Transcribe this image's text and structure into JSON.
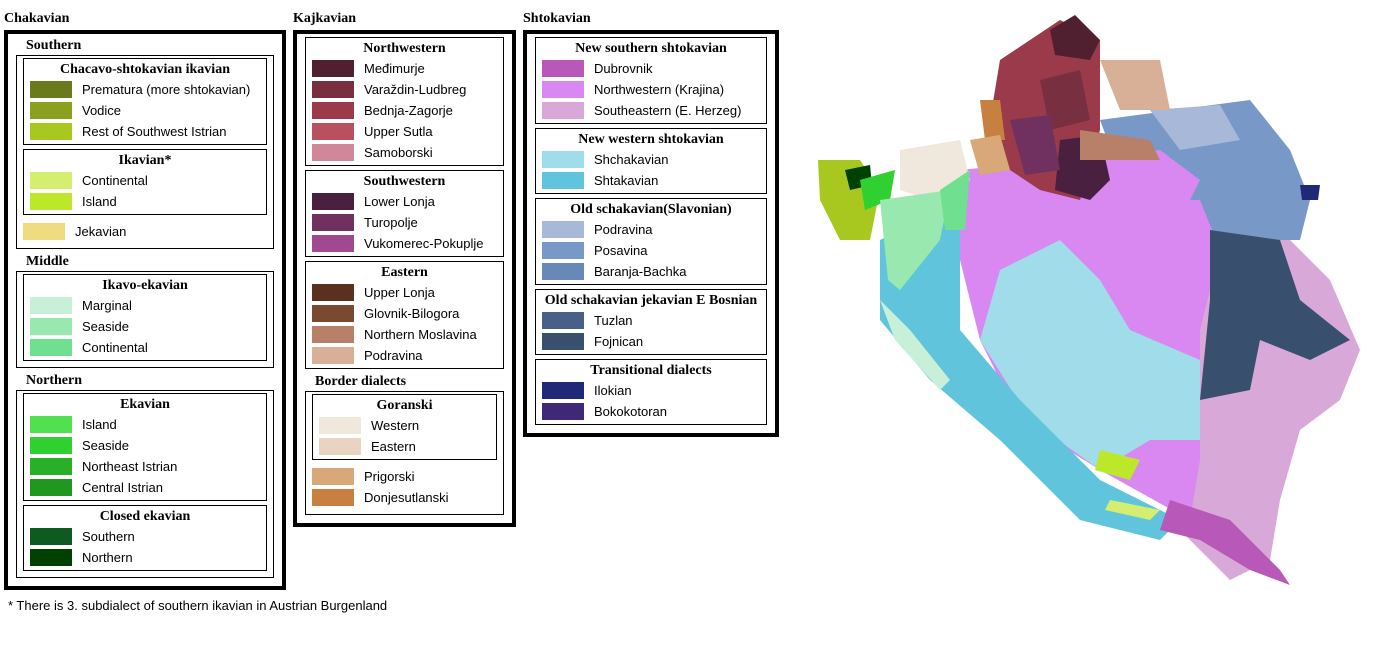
{
  "columns": [
    {
      "title": "Chakavian",
      "nodes": [
        {
          "title": "Southern",
          "children": [
            {
              "title": "Chacavo-shtokavian ikavian",
              "items": [
                {
                  "label": "Prematura (more shtokavian)",
                  "color": "#6b7a1a"
                },
                {
                  "label": "Vodice",
                  "color": "#8aa01e"
                },
                {
                  "label": "Rest of Southwest Istrian",
                  "color": "#a8c820"
                }
              ]
            },
            {
              "title": "Ikavian*",
              "items": [
                {
                  "label": "Continental",
                  "color": "#d4ee70"
                },
                {
                  "label": "Island",
                  "color": "#bde82a"
                }
              ]
            },
            {
              "items": [
                {
                  "label": "Jekavian",
                  "color": "#f0dc80"
                }
              ]
            }
          ]
        },
        {
          "title": "Middle",
          "children": [
            {
              "title": "Ikavo-ekavian",
              "items": [
                {
                  "label": "Marginal",
                  "color": "#c8f0d8"
                },
                {
                  "label": "Seaside",
                  "color": "#98e8b0"
                },
                {
                  "label": "Continental",
                  "color": "#70e090"
                }
              ]
            }
          ]
        },
        {
          "title": "Northern",
          "children": [
            {
              "title": "Ekavian",
              "items": [
                {
                  "label": "Island",
                  "color": "#50e050"
                },
                {
                  "label": "Seaside",
                  "color": "#30d030"
                },
                {
                  "label": "Northeast Istrian",
                  "color": "#28b028"
                },
                {
                  "label": "Central Istrian",
                  "color": "#209820"
                }
              ]
            },
            {
              "title": "Closed ekavian",
              "items": [
                {
                  "label": "Southern",
                  "color": "#0e5a20"
                },
                {
                  "label": "Northern",
                  "color": "#004000"
                }
              ]
            }
          ]
        }
      ]
    },
    {
      "title": "Kajkavian",
      "nodes": [
        {
          "title": "Northwestern",
          "items": [
            {
              "label": "Međimurje",
              "color": "#502030"
            },
            {
              "label": "Varaždin-Ludbreg",
              "color": "#782f40"
            },
            {
              "label": "Bednja-Zagorje",
              "color": "#9a3a4a"
            },
            {
              "label": "Upper Sutla",
              "color": "#b85060"
            },
            {
              "label": "Samoborski",
              "color": "#d08898"
            }
          ]
        },
        {
          "title": "Southwestern",
          "items": [
            {
              "label": "Lower Lonja",
              "color": "#4a2040"
            },
            {
              "label": "Turopolje",
              "color": "#703060"
            },
            {
              "label": "Vukomerec-Pokuplje",
              "color": "#a04890"
            }
          ]
        },
        {
          "title": "Eastern",
          "items": [
            {
              "label": "Upper Lonja",
              "color": "#5a3020"
            },
            {
              "label": "Glovnik-Bilogora",
              "color": "#7a4a30"
            },
            {
              "label": "Northern Moslavina",
              "color": "#b88068"
            },
            {
              "label": "Podravina",
              "color": "#d8b098"
            }
          ]
        },
        {
          "title": "Border dialects",
          "children": [
            {
              "title": "Goranski",
              "items": [
                {
                  "label": "Western",
                  "color": "#f0e8dc"
                },
                {
                  "label": "Eastern",
                  "color": "#e8d4c0"
                }
              ]
            },
            {
              "items": [
                {
                  "label": "Prigorski",
                  "color": "#d8a878"
                },
                {
                  "label": "Donjesutlanski",
                  "color": "#c88040"
                }
              ]
            }
          ]
        }
      ]
    },
    {
      "title": "Shtokavian",
      "nodes": [
        {
          "title": "New southern shtokavian",
          "items": [
            {
              "label": "Dubrovnik",
              "color": "#b858b8"
            },
            {
              "label": "Northwestern (Krajina)",
              "color": "#d888f0"
            },
            {
              "label": "Southeastern (E. Herzeg)",
              "color": "#d8a8d8"
            }
          ]
        },
        {
          "title": "New western shtokavian",
          "items": [
            {
              "label": "Shchakavian",
              "color": "#a0dcea"
            },
            {
              "label": "Shtakavian",
              "color": "#60c4dc"
            }
          ]
        },
        {
          "title": "Old schakavian(Slavonian)",
          "items": [
            {
              "label": "Podravina",
              "color": "#a8b8d8"
            },
            {
              "label": "Posavina",
              "color": "#7898c8"
            },
            {
              "label": "Baranja-Bachka",
              "color": "#6888b8"
            }
          ]
        },
        {
          "title": "Old schakavian jekavian E Bosnian",
          "items": [
            {
              "label": "Tuzlan",
              "color": "#486088"
            },
            {
              "label": "Fojnican",
              "color": "#38506e"
            }
          ]
        },
        {
          "title": "Transitional dialects",
          "items": [
            {
              "label": "Ilokian",
              "color": "#202878"
            },
            {
              "label": "Bokokotoran",
              "color": "#402878"
            }
          ]
        }
      ]
    }
  ],
  "footnote": "* There is 3. subdialect of southern ikavian in Austrian Burgenland"
}
